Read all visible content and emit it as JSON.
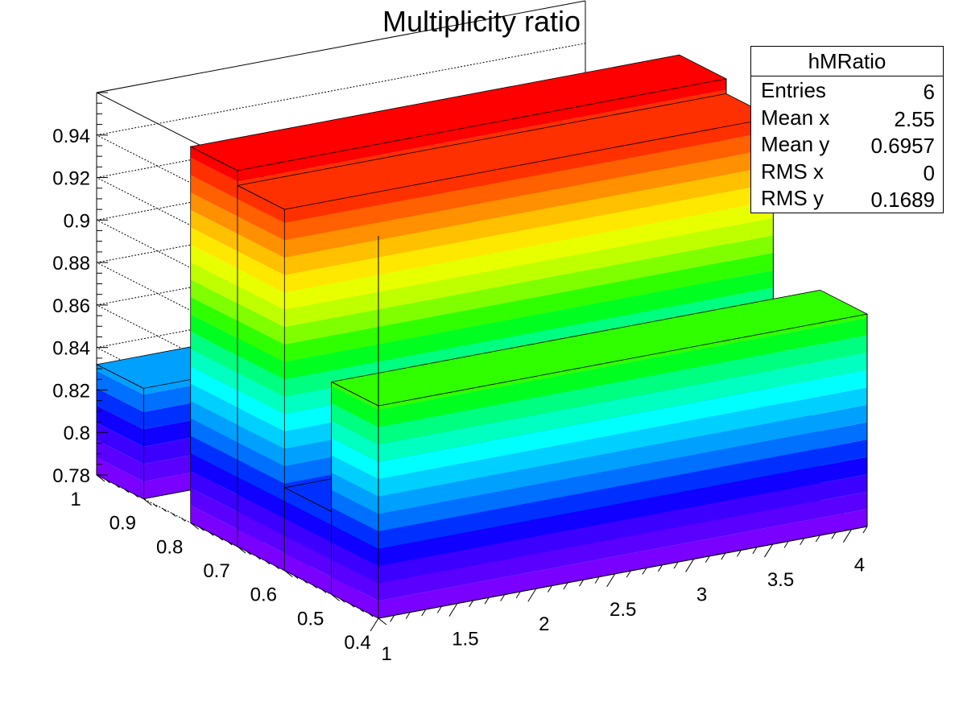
{
  "chart_data": {
    "type": "lego3d",
    "title": "Multiplicity ratio",
    "xlabel": "",
    "ylabel": "",
    "zlabel": "",
    "xlim": [
      1,
      4.1
    ],
    "ylim": [
      0.4,
      1
    ],
    "zlim": [
      0.78,
      0.96
    ],
    "x_ticks": [
      "1",
      "1.5",
      "2",
      "2.5",
      "3",
      "3.5",
      "4"
    ],
    "y_ticks": [
      "0.4",
      "0.5",
      "0.6",
      "0.7",
      "0.8",
      "0.9",
      "1"
    ],
    "z_ticks": [
      "0.78",
      "0.8",
      "0.82",
      "0.84",
      "0.86",
      "0.88",
      "0.9",
      "0.92",
      "0.94"
    ],
    "bars": [
      {
        "x": [
          1,
          4.1
        ],
        "y": [
          0.9,
          1.0
        ],
        "z": 0.832
      },
      {
        "x": [
          1,
          4.1
        ],
        "y": [
          0.7,
          0.8
        ],
        "z": 0.957
      },
      {
        "x": [
          1,
          4.1
        ],
        "y": [
          0.6,
          0.7
        ],
        "z": 0.95
      },
      {
        "x": [
          1,
          4.1
        ],
        "y": [
          0.5,
          0.6
        ],
        "z": 0.819
      },
      {
        "x": [
          1,
          4.1
        ],
        "y": [
          0.4,
          0.5
        ],
        "z": 0.88
      }
    ],
    "palette": [
      "#7a00ff",
      "#5a00ff",
      "#3c00ff",
      "#1000ff",
      "#0030ff",
      "#0070ff",
      "#00a0ff",
      "#00d0ff",
      "#00ffff",
      "#00ffc0",
      "#00ff80",
      "#00ff20",
      "#30ff00",
      "#80ff00",
      "#c0ff00",
      "#e8ff00",
      "#ffe800",
      "#ffc000",
      "#ff9000",
      "#ff6000",
      "#ff3000",
      "#ff0000"
    ],
    "grid": true
  },
  "stats_box": {
    "name": "hMRatio",
    "rows": [
      {
        "label": "Entries",
        "value": "6"
      },
      {
        "label": "Mean x",
        "value": "2.55"
      },
      {
        "label": "Mean y",
        "value": "0.6957"
      },
      {
        "label": "RMS x",
        "value": "0"
      },
      {
        "label": "RMS y",
        "value": "0.1689"
      }
    ]
  }
}
